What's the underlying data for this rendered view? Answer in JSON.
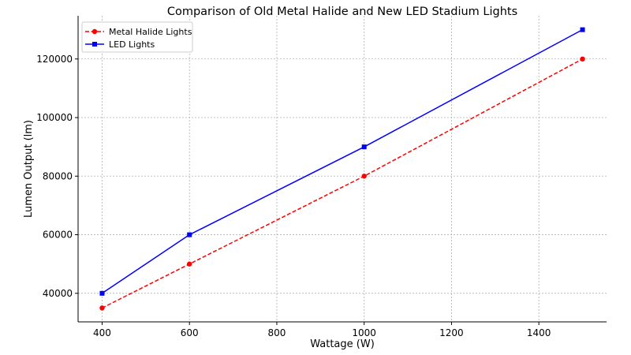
{
  "chart_data": {
    "type": "line",
    "title": "Comparison of Old Metal Halide and New LED Stadium Lights",
    "xlabel": "Wattage (W)",
    "ylabel": "Lumen Output (lm)",
    "x": [
      400,
      600,
      1000,
      1500
    ],
    "xlim": [
      345,
      1555
    ],
    "ylim": [
      30250,
      134750
    ],
    "xticks": [
      400,
      600,
      800,
      1000,
      1200,
      1400
    ],
    "yticks": [
      40000,
      60000,
      80000,
      100000,
      120000
    ],
    "grid": true,
    "legend_placement": "top-left",
    "series": [
      {
        "name": "Metal Halide Lights",
        "values": [
          35000,
          50000,
          80000,
          120000
        ],
        "color": "#ff0000",
        "style": "dashed",
        "marker": "circle"
      },
      {
        "name": "LED Lights",
        "values": [
          40000,
          60000,
          90000,
          130000
        ],
        "color": "#0000ff",
        "style": "solid",
        "marker": "square"
      }
    ]
  }
}
